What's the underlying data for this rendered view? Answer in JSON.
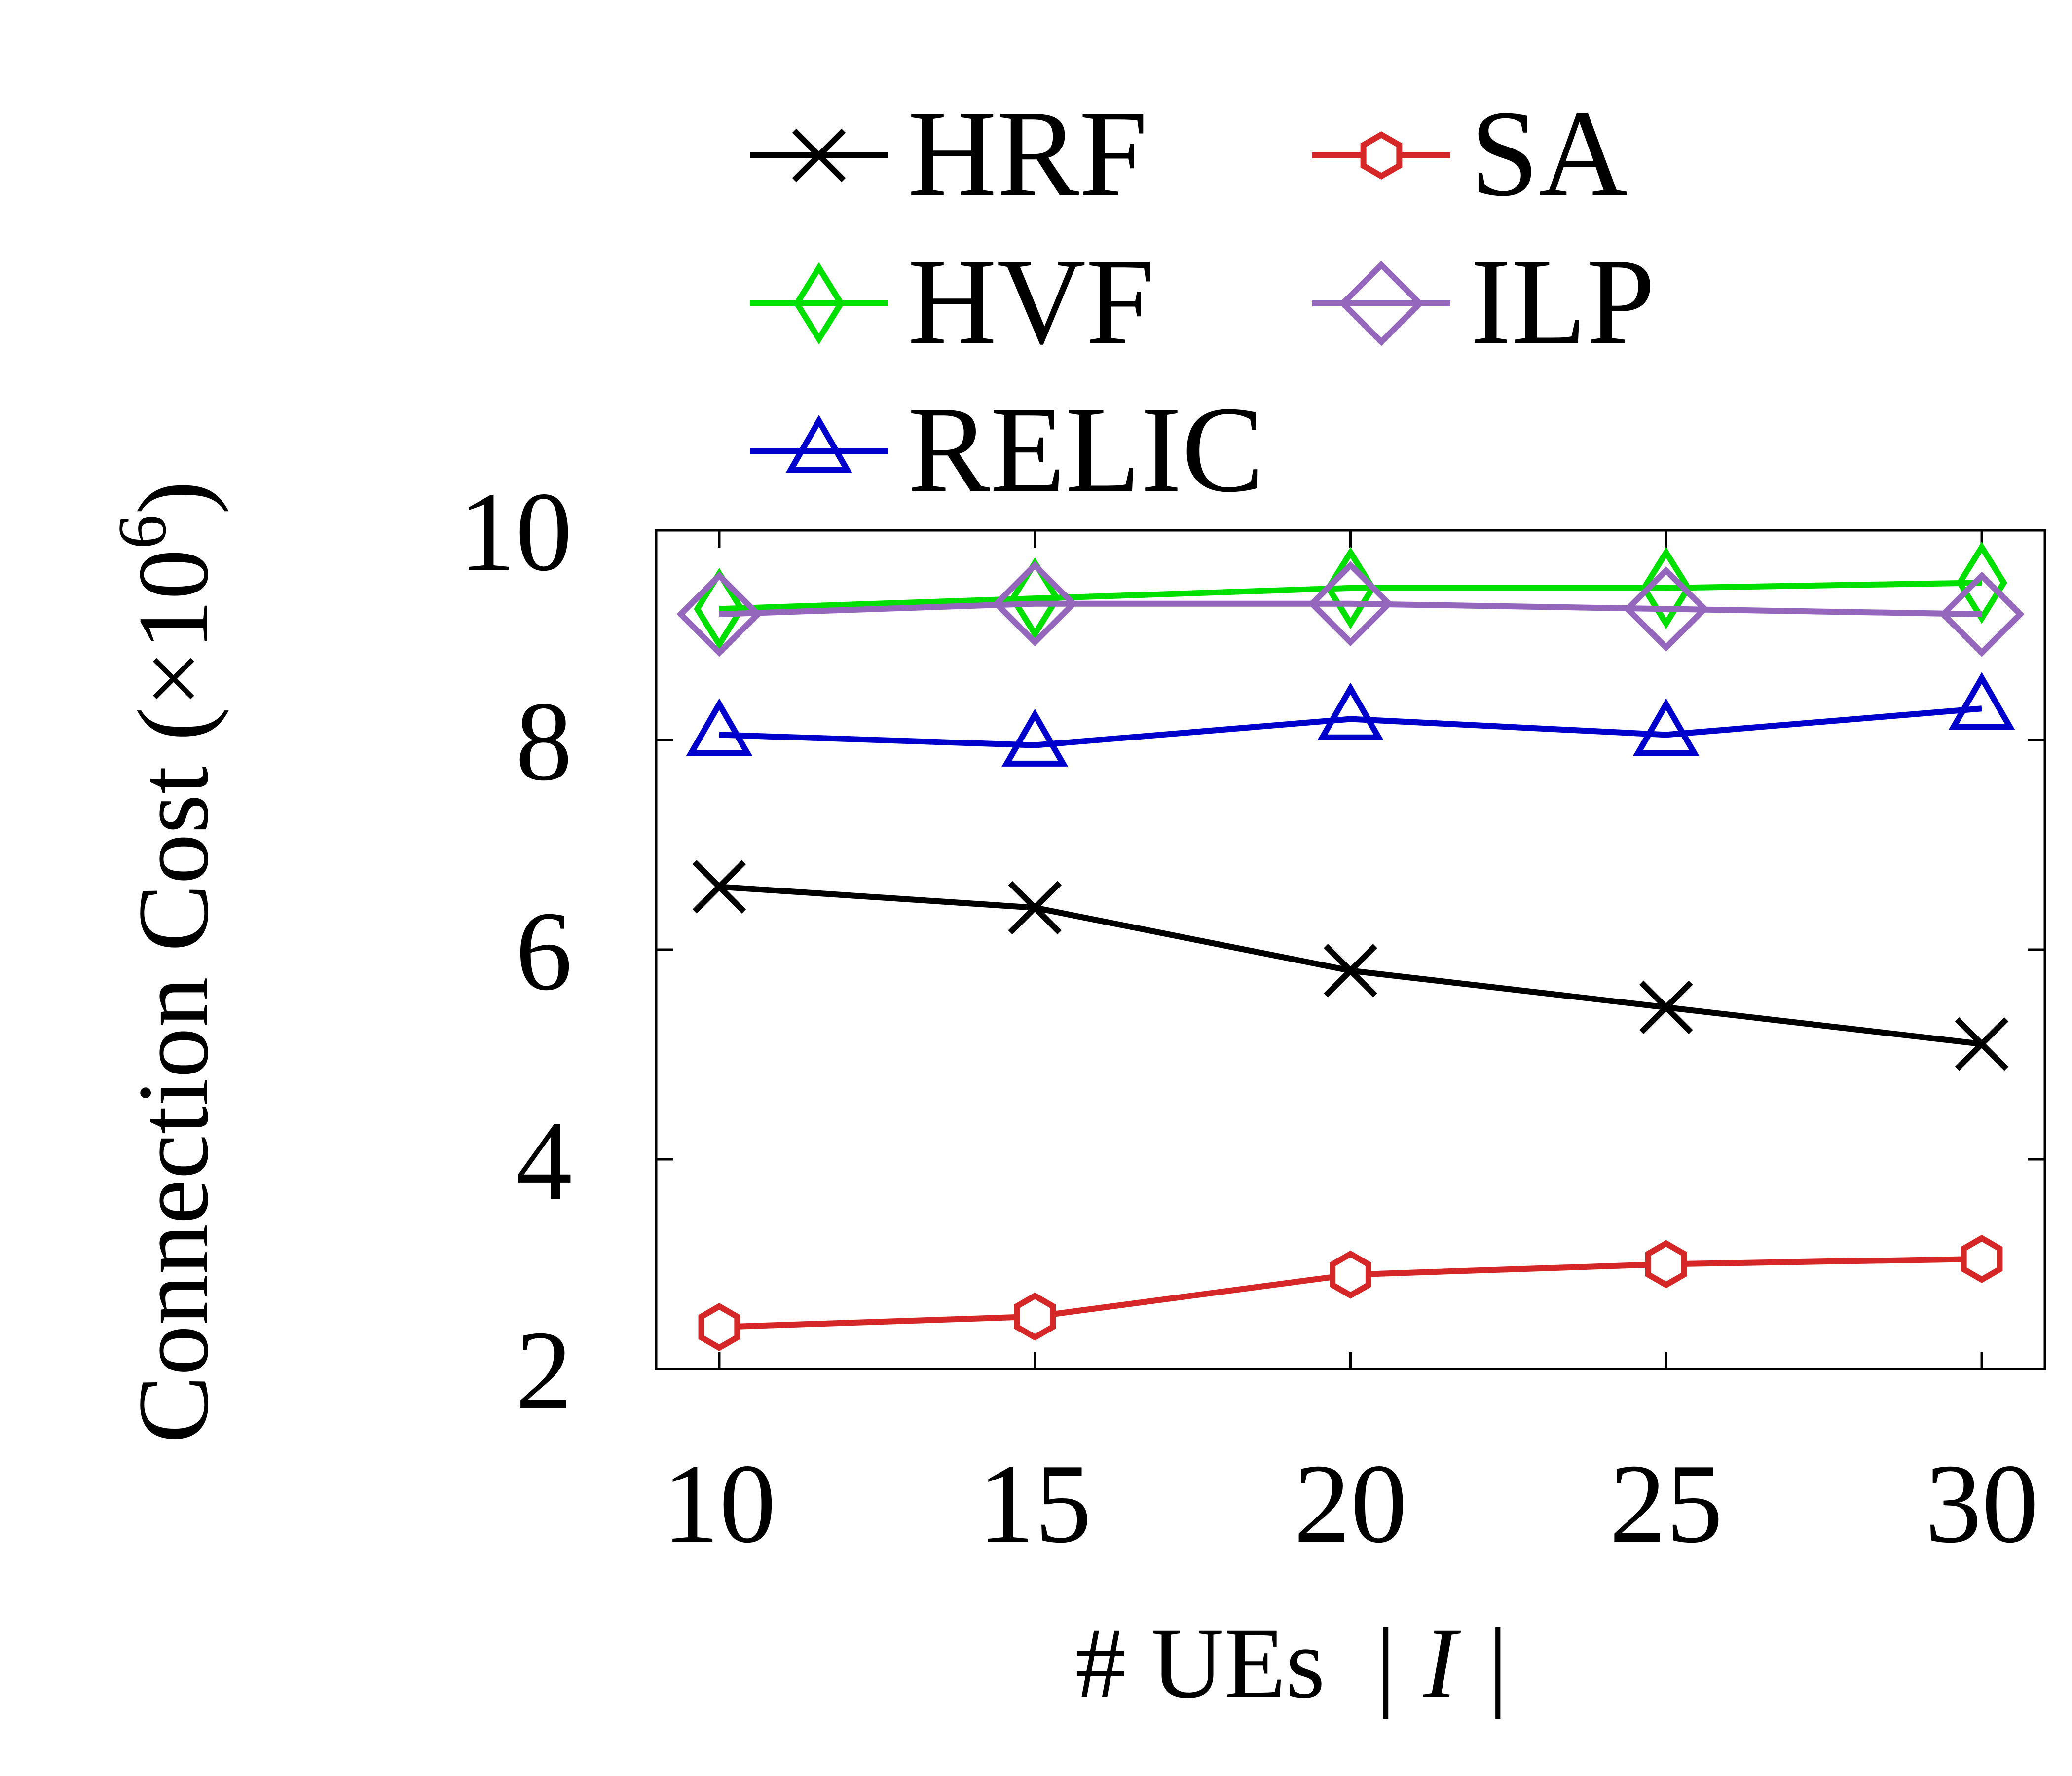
{
  "chart_data": {
    "type": "line",
    "title": "",
    "xlabel": "# UEs",
    "xlabel_symbol": "| I |",
    "ylabel": "Connection Cost (×10",
    "ylabel_exponent": "6",
    "ylabel_close": ")",
    "x": [
      10,
      15,
      20,
      25,
      30
    ],
    "x_tick_labels": [
      "10",
      "15",
      "20",
      "25",
      "30"
    ],
    "y_ticks": [
      2,
      4,
      6,
      8,
      10
    ],
    "y_tick_labels": [
      "2",
      "4",
      "6",
      "8",
      "10"
    ],
    "xlim": [
      9,
      31
    ],
    "ylim": [
      2,
      10
    ],
    "grid": false,
    "legend_position": "top, outside plot area",
    "series": [
      {
        "name": "HRF",
        "color": "#000000",
        "marker": "x",
        "values": [
          6.6,
          6.4,
          5.8,
          5.45,
          5.1
        ]
      },
      {
        "name": "SA",
        "color": "#d62728",
        "marker": "hexagon",
        "values": [
          2.4,
          2.5,
          2.9,
          3.0,
          3.05
        ]
      },
      {
        "name": "HVF",
        "color": "#00e000",
        "marker": "thin-diamond",
        "values": [
          9.25,
          9.35,
          9.45,
          9.45,
          9.5
        ]
      },
      {
        "name": "ILP",
        "color": "#9467bd",
        "marker": "diamond",
        "values": [
          9.2,
          9.3,
          9.3,
          9.25,
          9.2
        ]
      },
      {
        "name": "RELIC",
        "color": "#0000cc",
        "marker": "triangle",
        "values": [
          8.05,
          7.95,
          8.2,
          8.05,
          8.3
        ]
      }
    ]
  }
}
